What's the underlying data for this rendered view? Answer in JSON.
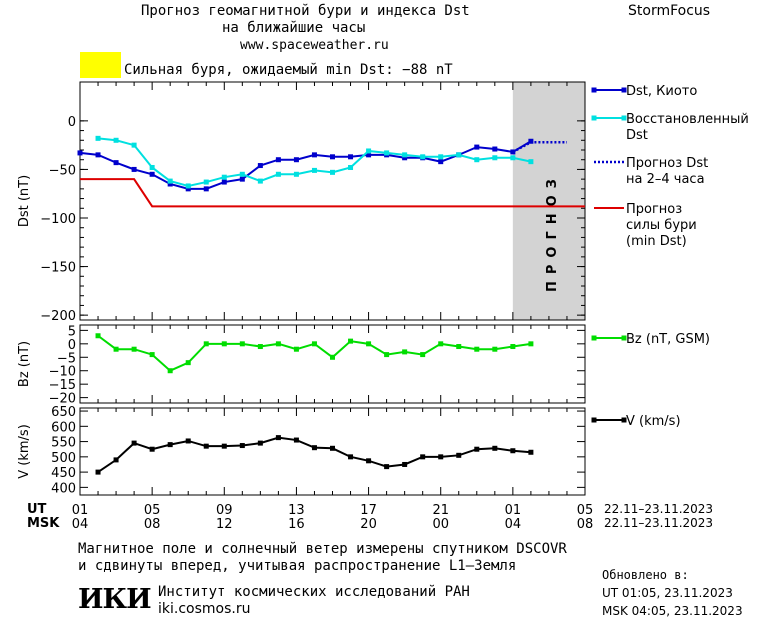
{
  "header": {
    "title_line1": "Прогноз геомагнитной бури и индекса Dst",
    "title_line2": "на ближайшие часы",
    "url": "www.spaceweather.ru",
    "brand": "StormFocus"
  },
  "alert": {
    "text": "Сильная буря, ожидаемый min Dst: −88 nT",
    "color": "#ffff00"
  },
  "forecast_band_label": "ПРОГНОЗ",
  "time_axis": {
    "ut_label": "UT",
    "msk_label": "MSK",
    "ut_ticks": [
      "01",
      "05",
      "09",
      "13",
      "17",
      "21",
      "01",
      "05"
    ],
    "msk_ticks": [
      "04",
      "08",
      "12",
      "16",
      "20",
      "00",
      "04",
      "08"
    ],
    "ut_range": "22.11–23.11.2023",
    "msk_range": "22.11–23.11.2023"
  },
  "footer": {
    "note_line1": "Магнитное поле и солнечный ветер измерены спутником DSCOVR",
    "note_line2": "и сдвинуты вперед, учитывая распространение L1–Земля",
    "logo_text": "ИКИ",
    "institute": "Институт космических исследований РАН",
    "site": "iki.cosmos.ru",
    "updated_label": "Обновлено в:",
    "updated_ut": "UT  01:05, 23.11.2023",
    "updated_msk": "MSK 04:05, 23.11.2023"
  },
  "chart_data": [
    {
      "type": "line",
      "ylabel": "Dst (nT)",
      "ylim": [
        -205,
        40
      ],
      "yticks": [
        0,
        -50,
        -100,
        -150,
        -200
      ],
      "xlim": [
        0,
        28
      ],
      "series": [
        {
          "name": "Dst, Киото",
          "color": "#0000cc",
          "marker": "square",
          "x": [
            0,
            1,
            2,
            3,
            4,
            5,
            6,
            7,
            8,
            9,
            10,
            11,
            12,
            13,
            14,
            15,
            16,
            17,
            18,
            19,
            20,
            21,
            22,
            23,
            24,
            25
          ],
          "y": [
            -33,
            -35,
            -43,
            -50,
            -55,
            -65,
            -70,
            -70,
            -63,
            -60,
            -46,
            -40,
            -40,
            -35,
            -37,
            -37,
            -35,
            -35,
            -38,
            -38,
            -42,
            -35,
            -27,
            -29,
            -32,
            -21
          ]
        },
        {
          "name": "Восстановленный Dst",
          "color": "#00e0e0",
          "marker": "square",
          "x": [
            1,
            2,
            3,
            4,
            5,
            6,
            7,
            8,
            9,
            10,
            11,
            12,
            13,
            14,
            15,
            16,
            17,
            18,
            19,
            20,
            21,
            22,
            23,
            24,
            25
          ],
          "y": [
            -18,
            -20,
            -25,
            -48,
            -62,
            -67,
            -63,
            -58,
            -55,
            -62,
            -55,
            -55,
            -51,
            -53,
            -48,
            -31,
            -33,
            -35,
            -37,
            -37,
            -35,
            -40,
            -38,
            -38,
            -42
          ]
        },
        {
          "name": "Прогноз Dst на 2–4 часа",
          "color": "#0000cc",
          "style": "dotted",
          "x": [
            24,
            25,
            26,
            27
          ],
          "y": [
            -32,
            -22,
            -22,
            -22
          ]
        },
        {
          "name": "Прогноз силы бури (min Dst)",
          "color": "#dd0000",
          "x": [
            0,
            3,
            4,
            28
          ],
          "y": [
            -60,
            -60,
            -88,
            -88
          ]
        }
      ],
      "forecast_band_x": [
        24,
        28
      ]
    },
    {
      "type": "line",
      "ylabel": "Bz (nT)",
      "ylim": [
        -22,
        7
      ],
      "yticks": [
        5,
        0,
        -5,
        -10,
        -15,
        -20
      ],
      "xlim": [
        0,
        28
      ],
      "series": [
        {
          "name": "Bz (nT, GSM)",
          "color": "#00dd00",
          "marker": "square",
          "x": [
            1,
            2,
            3,
            4,
            5,
            6,
            7,
            8,
            9,
            10,
            11,
            12,
            13,
            14,
            15,
            16,
            17,
            18,
            19,
            20,
            21,
            22,
            23,
            24,
            25
          ],
          "y": [
            3,
            -2,
            -2,
            -4,
            -10,
            -7,
            0,
            0,
            0,
            -1,
            0,
            -2,
            0,
            -5,
            1,
            0,
            -4,
            -3,
            -4,
            0,
            -1,
            -2,
            -2,
            -1,
            0
          ]
        }
      ]
    },
    {
      "type": "line",
      "ylabel": "V (km/s)",
      "ylim": [
        375,
        660
      ],
      "yticks": [
        650,
        600,
        550,
        500,
        450,
        400
      ],
      "xlim": [
        0,
        28
      ],
      "series": [
        {
          "name": "V (km/s)",
          "color": "#000000",
          "marker": "square",
          "x": [
            1,
            2,
            3,
            4,
            5,
            6,
            7,
            8,
            9,
            10,
            11,
            12,
            13,
            14,
            15,
            16,
            17,
            18,
            19,
            20,
            21,
            22,
            23,
            24,
            25
          ],
          "y": [
            450,
            490,
            545,
            525,
            540,
            552,
            535,
            535,
            537,
            545,
            563,
            555,
            530,
            528,
            500,
            487,
            468,
            475,
            500,
            500,
            505,
            525,
            528,
            520,
            515
          ]
        }
      ]
    }
  ]
}
